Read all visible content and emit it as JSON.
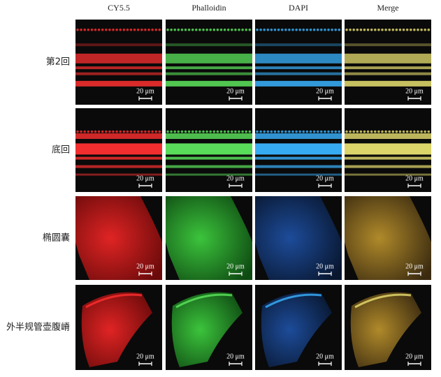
{
  "columns": [
    "CY5.5",
    "Phalloidin",
    "DAPI",
    "Merge"
  ],
  "rows": [
    {
      "label": "第2回",
      "panels": [
        {
          "scale": "20 μm"
        },
        {
          "scale": "20 μm"
        },
        {
          "scale": "20 μm"
        },
        {
          "scale": "20 μm"
        }
      ]
    },
    {
      "label": "底回",
      "panels": [
        {
          "scale": "20 μm"
        },
        {
          "scale": "20 μm"
        },
        {
          "scale": "20 μm"
        },
        {
          "scale": "20 μm"
        }
      ]
    },
    {
      "label": "椭圆囊",
      "panels": [
        {
          "scale": "20 μm"
        },
        {
          "scale": "20 μm"
        },
        {
          "scale": "20 μm"
        },
        {
          "scale": "20 μm"
        }
      ]
    },
    {
      "label": "外半规管壶腹嵴",
      "panels": [
        {
          "scale": "20 μm"
        },
        {
          "scale": "20 μm"
        },
        {
          "scale": "20 μm"
        },
        {
          "scale": "20 μm"
        }
      ]
    }
  ]
}
